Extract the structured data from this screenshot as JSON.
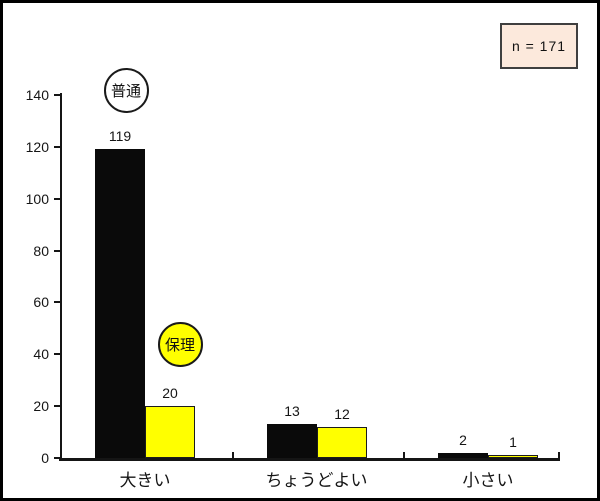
{
  "sample_box": {
    "label": "n = 171",
    "fill": "#fce9dc",
    "border": "#3f3f3f"
  },
  "chart_data": {
    "type": "bar",
    "title": "",
    "xlabel": "",
    "ylabel": "",
    "categories": [
      "大きい",
      "ちょうどよい",
      "小さい"
    ],
    "series": [
      {
        "name": "普通",
        "values": [
          119,
          13,
          2
        ],
        "color": "#0a0a0a",
        "label_shape": "circle",
        "label_fill": "#ffffff"
      },
      {
        "name": "保理",
        "values": [
          20,
          12,
          1
        ],
        "color": "#ffff00",
        "label_shape": "circle",
        "label_fill": "#ffff00"
      }
    ],
    "ylim": [
      0,
      140
    ],
    "y_ticks": [
      0,
      20,
      40,
      60,
      80,
      100,
      120,
      140
    ],
    "grid": false,
    "legend_position": "floating-circle-labels-near-first-group",
    "bar_value_labels": true,
    "annotation": "n = 171"
  },
  "colors": {
    "frame_border": "#000000",
    "background": "#ffffff",
    "axis": "#151515",
    "bar_black": "#0a0a0a",
    "bar_yellow": "#ffff00"
  }
}
